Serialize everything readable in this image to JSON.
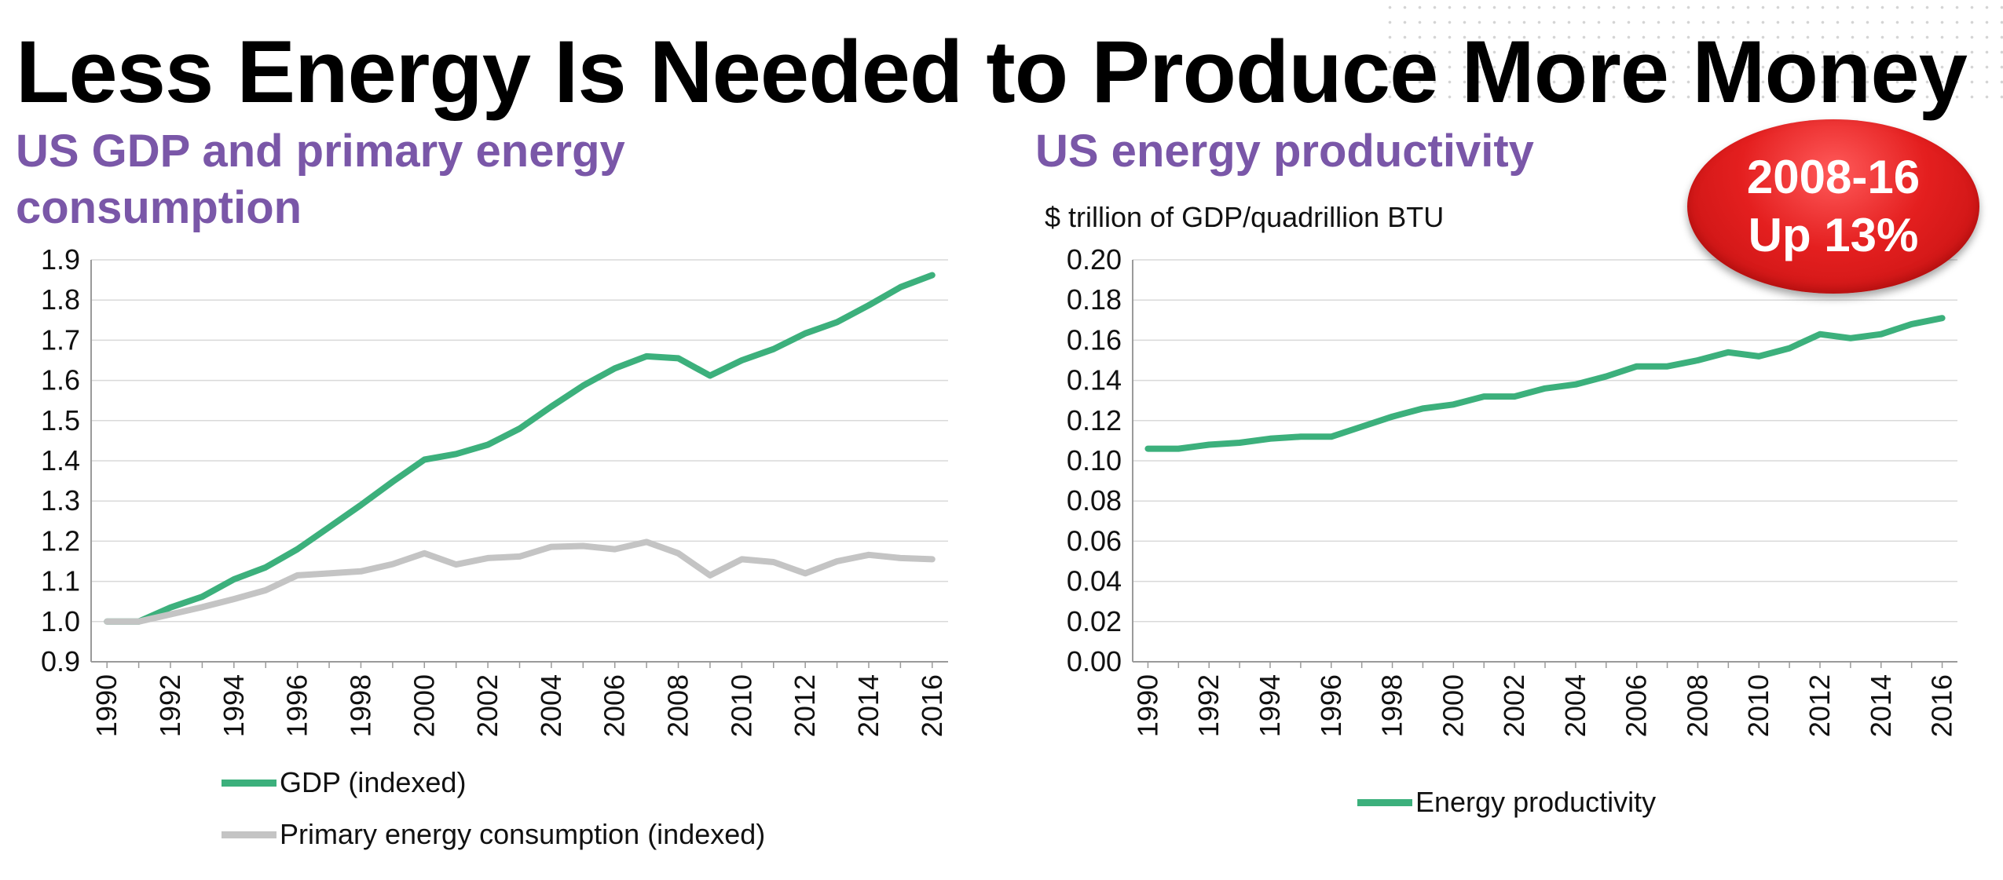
{
  "title": "Less Energy Is Needed to Produce More Money",
  "colors": {
    "gdp": "#3cb07c",
    "energy": "#c4c4c4",
    "productivity": "#3cb07c",
    "subtitle": "#7a57a8",
    "badge": "#e41f1f"
  },
  "badge": {
    "line1": "2008-16",
    "line2": "Up 13%"
  },
  "left_chart": {
    "subtitle": "US GDP and primary energy consumption"
  },
  "right_chart": {
    "subtitle": "US energy productivity",
    "unit": "$ trillion of GDP/quadrillion BTU"
  },
  "chart_data": [
    {
      "type": "line",
      "title": "US GDP and primary energy consumption",
      "x": [
        1990,
        1991,
        1992,
        1993,
        1994,
        1995,
        1996,
        1997,
        1998,
        1999,
        2000,
        2001,
        2002,
        2003,
        2004,
        2005,
        2006,
        2007,
        2008,
        2009,
        2010,
        2011,
        2012,
        2013,
        2014,
        2015,
        2016
      ],
      "tick_labels": [
        "1990",
        "1992",
        "1994",
        "1996",
        "1998",
        "2000",
        "2002",
        "2004",
        "2006",
        "2008",
        "2010",
        "2012",
        "2014",
        "2016"
      ],
      "yticks": [
        "0.9",
        "1.0",
        "1.1",
        "1.2",
        "1.3",
        "1.4",
        "1.5",
        "1.6",
        "1.7",
        "1.8",
        "1.9"
      ],
      "ylim": [
        0.9,
        1.9
      ],
      "xlim": [
        1989.5,
        2016.5
      ],
      "grid": true,
      "legend_position": "bottom",
      "series": [
        {
          "name": "GDP (indexed)",
          "values": [
            1.0,
            1.0,
            1.035,
            1.062,
            1.105,
            1.135,
            1.18,
            1.235,
            1.29,
            1.348,
            1.403,
            1.417,
            1.44,
            1.48,
            1.535,
            1.587,
            1.63,
            1.66,
            1.655,
            1.612,
            1.65,
            1.678,
            1.717,
            1.745,
            1.787,
            1.832,
            1.862
          ]
        },
        {
          "name": "Primary energy consumption (indexed)",
          "values": [
            1.0,
            1.0,
            1.018,
            1.036,
            1.056,
            1.078,
            1.115,
            1.12,
            1.125,
            1.143,
            1.17,
            1.142,
            1.158,
            1.162,
            1.186,
            1.188,
            1.18,
            1.198,
            1.17,
            1.115,
            1.155,
            1.148,
            1.12,
            1.15,
            1.166,
            1.158,
            1.155
          ]
        }
      ]
    },
    {
      "type": "line",
      "title": "US energy productivity",
      "ylabel": "$ trillion of GDP/quadrillion BTU",
      "x": [
        1990,
        1991,
        1992,
        1993,
        1994,
        1995,
        1996,
        1997,
        1998,
        1999,
        2000,
        2001,
        2002,
        2003,
        2004,
        2005,
        2006,
        2007,
        2008,
        2009,
        2010,
        2011,
        2012,
        2013,
        2014,
        2015,
        2016
      ],
      "tick_labels": [
        "1990",
        "1992",
        "1994",
        "1996",
        "1998",
        "2000",
        "2002",
        "2004",
        "2006",
        "2008",
        "2010",
        "2012",
        "2014",
        "2016"
      ],
      "yticks": [
        "0.00",
        "0.02",
        "0.04",
        "0.06",
        "0.08",
        "0.10",
        "0.12",
        "0.14",
        "0.16",
        "0.18",
        "0.20"
      ],
      "ylim": [
        0.0,
        0.2
      ],
      "xlim": [
        1989.5,
        2016.5
      ],
      "grid": true,
      "legend_position": "bottom",
      "series": [
        {
          "name": "Energy productivity",
          "values": [
            0.106,
            0.106,
            0.108,
            0.109,
            0.111,
            0.112,
            0.112,
            0.117,
            0.122,
            0.126,
            0.128,
            0.132,
            0.132,
            0.136,
            0.138,
            0.142,
            0.147,
            0.147,
            0.15,
            0.154,
            0.152,
            0.156,
            0.163,
            0.161,
            0.163,
            0.168,
            0.171
          ]
        }
      ]
    }
  ]
}
